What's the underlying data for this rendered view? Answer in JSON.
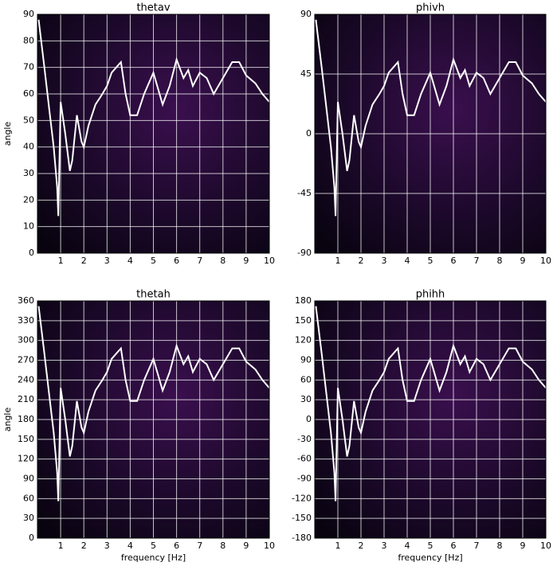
{
  "chart_data": [
    {
      "type": "line",
      "title": "thetav",
      "ylabel": "angle",
      "x": [
        0.05,
        0.3,
        0.5,
        0.7,
        0.85,
        0.9,
        1.0,
        1.2,
        1.4,
        1.5,
        1.7,
        1.9,
        2.0,
        2.2,
        2.5,
        2.8,
        3.0,
        3.2,
        3.4,
        3.6,
        3.8,
        4.0,
        4.3,
        4.6,
        5.0,
        5.4,
        5.7,
        6.0,
        6.3,
        6.5,
        6.7,
        7.0,
        7.3,
        7.6,
        8.0,
        8.4,
        8.7,
        9.0,
        9.4,
        9.7,
        10.0
      ],
      "values": [
        88,
        70,
        55,
        40,
        25,
        14,
        57,
        45,
        31,
        35,
        52,
        42,
        40,
        48,
        56,
        60,
        63,
        68,
        70,
        72,
        60,
        52,
        52,
        60,
        68,
        56,
        63,
        73,
        66,
        69,
        63,
        68,
        66,
        60,
        66,
        72,
        72,
        67,
        64,
        60,
        57
      ],
      "color": "#ffffff",
      "xlim": [
        0,
        10
      ],
      "ylim": [
        0,
        90
      ],
      "xticks": [
        1,
        2,
        3,
        4,
        5,
        6,
        7,
        8,
        9,
        10
      ],
      "yticks": [
        0,
        10,
        20,
        30,
        40,
        50,
        60,
        70,
        80,
        90
      ],
      "grid": true
    },
    {
      "type": "line",
      "title": "phivh",
      "x": [
        0.05,
        0.3,
        0.5,
        0.7,
        0.85,
        0.9,
        1.0,
        1.2,
        1.4,
        1.5,
        1.7,
        1.9,
        2.0,
        2.2,
        2.5,
        2.8,
        3.0,
        3.2,
        3.4,
        3.6,
        3.8,
        4.0,
        4.3,
        4.6,
        5.0,
        5.4,
        5.7,
        6.0,
        6.3,
        6.5,
        6.7,
        7.0,
        7.3,
        7.6,
        8.0,
        8.4,
        8.7,
        9.0,
        9.4,
        9.7,
        10.0
      ],
      "values": [
        86,
        50,
        20,
        -10,
        -40,
        -62,
        24,
        0,
        -28,
        -20,
        14,
        -6,
        -10,
        6,
        22,
        30,
        36,
        46,
        50,
        54,
        30,
        14,
        14,
        30,
        46,
        22,
        36,
        56,
        42,
        48,
        36,
        46,
        42,
        30,
        42,
        54,
        54,
        44,
        38,
        30,
        24
      ],
      "color": "#ffffff",
      "xlim": [
        0,
        10
      ],
      "ylim": [
        -90,
        90
      ],
      "xticks": [
        1,
        2,
        3,
        4,
        5,
        6,
        7,
        8,
        9,
        10
      ],
      "yticks": [
        -90,
        -45,
        0,
        45,
        90
      ],
      "grid": true
    },
    {
      "type": "line",
      "title": "thetah",
      "ylabel": "angle",
      "xlabel": "frequency [Hz]",
      "x": [
        0.05,
        0.3,
        0.5,
        0.7,
        0.85,
        0.9,
        1.0,
        1.2,
        1.4,
        1.5,
        1.7,
        1.9,
        2.0,
        2.2,
        2.5,
        2.8,
        3.0,
        3.2,
        3.4,
        3.6,
        3.8,
        4.0,
        4.3,
        4.6,
        5.0,
        5.4,
        5.7,
        6.0,
        6.3,
        6.5,
        6.7,
        7.0,
        7.3,
        7.6,
        8.0,
        8.4,
        8.7,
        9.0,
        9.4,
        9.7,
        10.0
      ],
      "values": [
        352,
        280,
        220,
        160,
        100,
        56,
        228,
        180,
        124,
        140,
        208,
        168,
        160,
        192,
        224,
        240,
        252,
        272,
        280,
        288,
        240,
        208,
        208,
        240,
        272,
        224,
        252,
        292,
        264,
        276,
        252,
        272,
        264,
        240,
        264,
        288,
        288,
        268,
        256,
        240,
        228
      ],
      "color": "#ffffff",
      "xlim": [
        0,
        10
      ],
      "ylim": [
        0,
        360
      ],
      "xticks": [
        1,
        2,
        3,
        4,
        5,
        6,
        7,
        8,
        9,
        10
      ],
      "yticks": [
        0,
        30,
        60,
        90,
        120,
        150,
        180,
        210,
        240,
        270,
        300,
        330,
        360
      ],
      "grid": true
    },
    {
      "type": "line",
      "title": "phihh",
      "xlabel": "frequency [Hz]",
      "x": [
        0.05,
        0.3,
        0.5,
        0.7,
        0.85,
        0.9,
        1.0,
        1.2,
        1.4,
        1.5,
        1.7,
        1.9,
        2.0,
        2.2,
        2.5,
        2.8,
        3.0,
        3.2,
        3.4,
        3.6,
        3.8,
        4.0,
        4.3,
        4.6,
        5.0,
        5.4,
        5.7,
        6.0,
        6.3,
        6.5,
        6.7,
        7.0,
        7.3,
        7.6,
        8.0,
        8.4,
        8.7,
        9.0,
        9.4,
        9.7,
        10.0
      ],
      "values": [
        172,
        100,
        40,
        -20,
        -80,
        -124,
        48,
        0,
        -56,
        -40,
        28,
        -12,
        -20,
        12,
        44,
        60,
        72,
        92,
        100,
        108,
        60,
        28,
        28,
        60,
        92,
        44,
        72,
        112,
        84,
        96,
        72,
        92,
        84,
        60,
        84,
        108,
        108,
        88,
        76,
        60,
        48
      ],
      "color": "#ffffff",
      "xlim": [
        0,
        10
      ],
      "ylim": [
        -180,
        180
      ],
      "xticks": [
        1,
        2,
        3,
        4,
        5,
        6,
        7,
        8,
        9,
        10
      ],
      "yticks": [
        -180,
        -150,
        -120,
        -90,
        -60,
        -30,
        0,
        30,
        60,
        90,
        120,
        150,
        180
      ],
      "grid": true
    }
  ]
}
